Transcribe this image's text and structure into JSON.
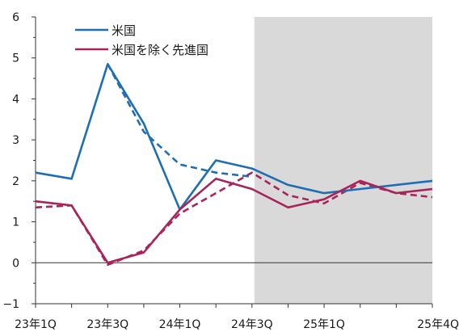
{
  "chart_data": {
    "type": "line",
    "title": "",
    "xlabel": "",
    "ylabel": "",
    "x": [
      "23年1Q",
      "23年2Q",
      "23年3Q",
      "23年4Q",
      "24年1Q",
      "24年2Q",
      "24年3Q",
      "24年4Q",
      "25年1Q",
      "25年2Q",
      "25年3Q",
      "25年4Q"
    ],
    "x_tick_labels": [
      "23年1Q",
      "23年3Q",
      "24年1Q",
      "24年3Q",
      "25年1Q",
      "25年4Q"
    ],
    "ylim": [
      -1,
      6
    ],
    "y_ticks": [
      -1,
      0,
      1,
      2,
      3,
      4,
      5,
      6
    ],
    "forecast_shading_from": "24年3Q",
    "shading_color": "#d9d9d9",
    "grid": false,
    "legend_position": "top-left",
    "series": [
      {
        "name": "米国",
        "color": "#1f6eb4",
        "style": "solid",
        "values": [
          2.2,
          2.05,
          4.85,
          3.4,
          1.3,
          2.5,
          2.3,
          1.9,
          1.7,
          1.8,
          1.9,
          2.0
        ]
      },
      {
        "name": "",
        "color": "#1f6eb4",
        "style": "dashed",
        "values": [
          null,
          null,
          4.85,
          3.2,
          2.4,
          2.2,
          2.1,
          null,
          null,
          null,
          null,
          null
        ]
      },
      {
        "name": "米国を除く先進国",
        "color": "#a8255a",
        "style": "solid",
        "values": [
          1.5,
          1.4,
          0.0,
          0.25,
          1.3,
          2.05,
          1.8,
          1.35,
          1.55,
          2.0,
          1.7,
          1.8
        ]
      },
      {
        "name": "",
        "color": "#a8255a",
        "style": "dashed",
        "values": [
          1.35,
          1.4,
          -0.05,
          0.3,
          1.2,
          1.7,
          2.2,
          1.65,
          1.45,
          1.95,
          1.7,
          1.6
        ]
      }
    ]
  }
}
